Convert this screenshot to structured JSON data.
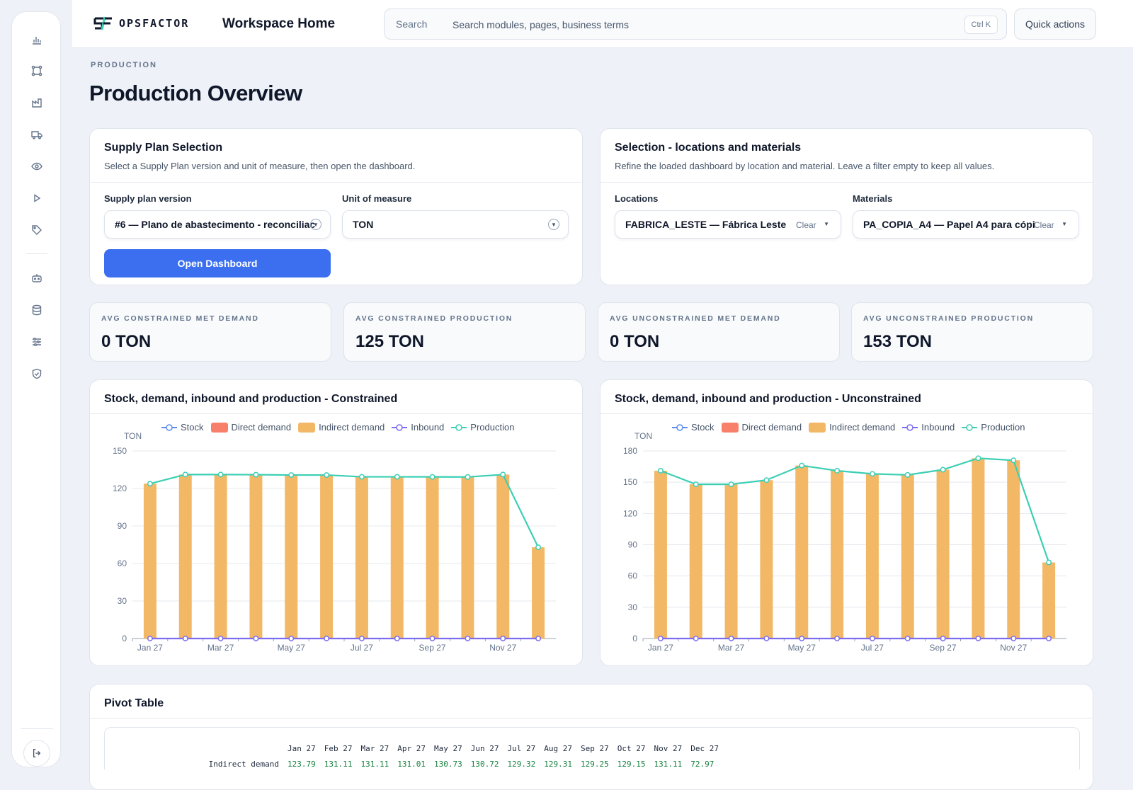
{
  "header": {
    "logo_text": "OPSFACTOR",
    "workspace_title": "Workspace Home",
    "search_label": "Search",
    "search_placeholder": "Search modules, pages, business terms",
    "search_shortcut": "Ctrl K",
    "quick_actions": "Quick actions"
  },
  "sidebar": {
    "icons": [
      "bar-chart-icon",
      "network-icon",
      "factory-icon",
      "truck-icon",
      "eye-icon",
      "play-icon",
      "tag-icon",
      "robot-icon",
      "database-icon",
      "sliders-icon",
      "shield-check-icon"
    ],
    "logout_icon": "logout-icon"
  },
  "page": {
    "eyebrow": "PRODUCTION",
    "title": "Production Overview"
  },
  "supply_plan": {
    "title": "Supply Plan Selection",
    "subtitle": "Select a Supply Plan version and unit of measure, then open the dashboard.",
    "version_label": "Supply plan version",
    "version_value": "#6 — Plano de abastecimento - reconciliac",
    "uom_label": "Unit of measure",
    "uom_value": "TON",
    "open_button": "Open Dashboard"
  },
  "filters": {
    "title": "Selection - locations and materials",
    "subtitle": "Refine the loaded dashboard by location and material. Leave a filter empty to keep all values.",
    "locations_label": "Locations",
    "locations_value": "FABRICA_LESTE — Fábrica Leste",
    "materials_label": "Materials",
    "materials_value": "PA_COPIA_A4 — Papel A4 para cópi",
    "clear_label": "Clear"
  },
  "kpis": [
    {
      "label": "AVG CONSTRAINED MET DEMAND",
      "value": "0 TON"
    },
    {
      "label": "AVG CONSTRAINED PRODUCTION",
      "value": "125 TON"
    },
    {
      "label": "AVG UNCONSTRAINED MET DEMAND",
      "value": "0 TON"
    },
    {
      "label": "AVG UNCONSTRAINED PRODUCTION",
      "value": "153 TON"
    }
  ],
  "legend": {
    "stock": "Stock",
    "direct": "Direct demand",
    "indirect": "Indirect demand",
    "inbound": "Inbound",
    "production": "Production"
  },
  "colors": {
    "stock": "#5b8def",
    "direct": "#f87f6a",
    "indirect": "#f2b866",
    "inbound": "#7c6cf0",
    "production": "#3ccfb4",
    "accent": "#3b6ff0"
  },
  "chart_data": [
    {
      "type": "bar",
      "title": "Stock, demand, inbound and production - Constrained",
      "ylabel": "TON",
      "ylim": [
        0,
        150
      ],
      "yticks": [
        0,
        30,
        60,
        90,
        120,
        150
      ],
      "categories": [
        "Jan 27",
        "Feb 27",
        "Mar 27",
        "Apr 27",
        "May 27",
        "Jun 27",
        "Jul 27",
        "Aug 27",
        "Sep 27",
        "Oct 27",
        "Nov 27",
        "Dec 27"
      ],
      "x_tick_labels": [
        "Jan 27",
        "Mar 27",
        "May 27",
        "Jul 27",
        "Sep 27",
        "Nov 27"
      ],
      "series": [
        {
          "name": "Indirect demand",
          "type": "bar",
          "values": [
            123.79,
            131.11,
            131.11,
            131.01,
            130.73,
            130.72,
            129.32,
            129.31,
            129.25,
            129.15,
            131.11,
            72.97
          ]
        },
        {
          "name": "Production",
          "type": "line",
          "values": [
            123.79,
            131.11,
            131.11,
            131.01,
            130.73,
            130.72,
            129.32,
            129.31,
            129.25,
            129.15,
            131.11,
            72.97
          ]
        },
        {
          "name": "Inbound",
          "type": "line",
          "values": [
            0,
            0,
            0,
            0,
            0,
            0,
            0,
            0,
            0,
            0,
            0,
            0
          ]
        }
      ]
    },
    {
      "type": "bar",
      "title": "Stock, demand, inbound and production - Unconstrained",
      "ylabel": "TON",
      "ylim": [
        0,
        180
      ],
      "yticks": [
        0,
        30,
        60,
        90,
        120,
        150,
        180
      ],
      "categories": [
        "Jan 27",
        "Feb 27",
        "Mar 27",
        "Apr 27",
        "May 27",
        "Jun 27",
        "Jul 27",
        "Aug 27",
        "Sep 27",
        "Oct 27",
        "Nov 27",
        "Dec 27"
      ],
      "x_tick_labels": [
        "Jan 27",
        "Mar 27",
        "May 27",
        "Jul 27",
        "Sep 27",
        "Nov 27"
      ],
      "series": [
        {
          "name": "Indirect demand",
          "type": "bar",
          "values": [
            161,
            148,
            148,
            152,
            166,
            161,
            158,
            157,
            162,
            173,
            171,
            73
          ]
        },
        {
          "name": "Production",
          "type": "line",
          "values": [
            161,
            148,
            148,
            152,
            166,
            161,
            158,
            157,
            162,
            173,
            171,
            73
          ]
        },
        {
          "name": "Inbound",
          "type": "line",
          "values": [
            0,
            0,
            0,
            0,
            0,
            0,
            0,
            0,
            0,
            0,
            0,
            0
          ]
        }
      ]
    }
  ],
  "pivot": {
    "title": "Pivot Table",
    "columns": [
      "Jan 27",
      "Feb 27",
      "Mar 27",
      "Apr 27",
      "May 27",
      "Jun 27",
      "Jul 27",
      "Aug 27",
      "Sep 27",
      "Oct 27",
      "Nov 27",
      "Dec 27"
    ],
    "rows": [
      {
        "label": "Indirect demand",
        "values": [
          "123.79",
          "131.11",
          "131.11",
          "131.01",
          "130.73",
          "130.72",
          "129.32",
          "129.31",
          "129.25",
          "129.15",
          "131.11",
          "72.97"
        ]
      }
    ]
  }
}
